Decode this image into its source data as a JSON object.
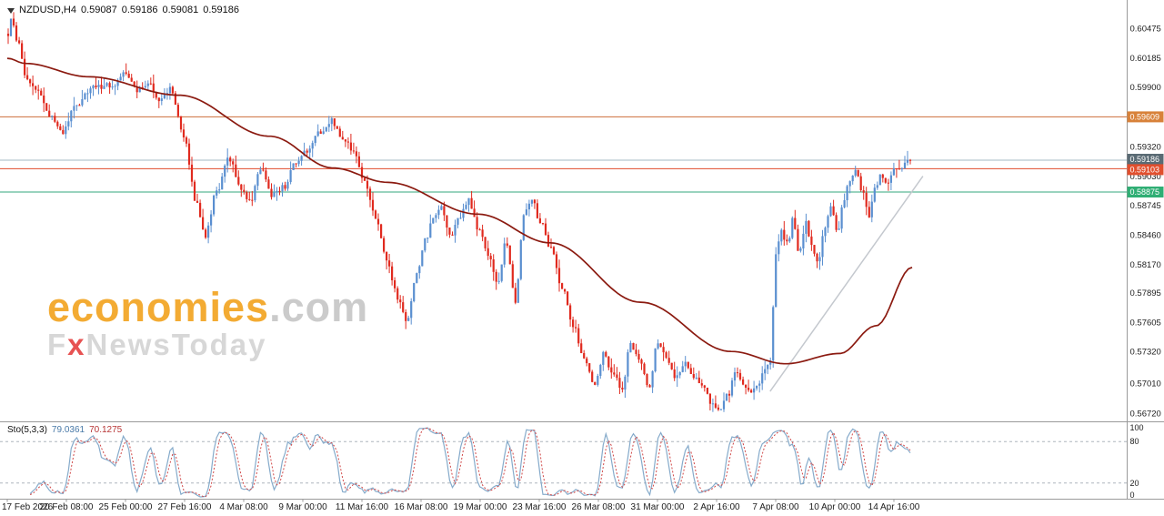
{
  "header": {
    "symbol_timeframe": "NZDUSD,H4",
    "open": "0.59087",
    "high": "0.59186",
    "low": "0.59081",
    "close": "0.59186"
  },
  "watermark": {
    "brand": "economies",
    "brand_suffix": ".com",
    "sub_pre": "F",
    "sub_x": "x",
    "sub_post": "NewsToday"
  },
  "indicator": {
    "name": "Sto(5,3,3)",
    "value_main": "79.0361",
    "value_signal": "70.1275"
  },
  "chart_data": {
    "type": "candlestick",
    "symbol": "NZDUSD",
    "timeframe": "H4",
    "last_close": 0.59186,
    "ohlc_display": {
      "open": 0.59087,
      "high": 0.59186,
      "low": 0.59081,
      "close": 0.59186
    },
    "y_axis": {
      "visible_top": 0.6066,
      "visible_bottom": 0.56638,
      "ticks": [
        0.60475,
        0.60185,
        0.599,
        0.5932,
        0.5903,
        0.58745,
        0.5846,
        0.5817,
        0.57895,
        0.57605,
        0.5732,
        0.5701,
        0.5672
      ]
    },
    "x_axis": {
      "labels": [
        "17 Feb 2026",
        "20 Feb 08:00",
        "25 Feb 00:00",
        "27 Feb 16:00",
        "4 Mar 08:00",
        "9 Mar 00:00",
        "11 Mar 16:00",
        "16 Mar 08:00",
        "19 Mar 00:00",
        "23 Mar 16:00",
        "26 Mar 08:00",
        "31 Mar 00:00",
        "2 Apr 16:00",
        "7 Apr 08:00",
        "10 Apr 00:00",
        "14 Apr 16:00"
      ]
    },
    "levels": [
      {
        "price": 0.59609,
        "label": "0.59609",
        "line_color": "#cd6e3a",
        "badge_color": "#d8823a",
        "kind": "resistance"
      },
      {
        "price": 0.59186,
        "label": "0.59186",
        "line_color": "#a5b9c3",
        "badge_color": "#5a6b74",
        "kind": "bid"
      },
      {
        "price": 0.59103,
        "label": "0.59103",
        "line_color": "#e0492a",
        "badge_color": "#e14f2e",
        "kind": "level"
      },
      {
        "price": 0.58875,
        "label": "0.58875",
        "line_color": "#35a77e",
        "badge_color": "#2fae74",
        "kind": "support"
      }
    ],
    "price_path": [
      [
        0.0,
        0.6042
      ],
      [
        0.004,
        0.6056
      ],
      [
        0.012,
        0.603
      ],
      [
        0.02,
        0.5995
      ],
      [
        0.032,
        0.5988
      ],
      [
        0.046,
        0.5962
      ],
      [
        0.06,
        0.5945
      ],
      [
        0.075,
        0.5972
      ],
      [
        0.095,
        0.599
      ],
      [
        0.115,
        0.5992
      ],
      [
        0.13,
        0.6003
      ],
      [
        0.143,
        0.5986
      ],
      [
        0.155,
        0.5995
      ],
      [
        0.168,
        0.5978
      ],
      [
        0.18,
        0.5988
      ],
      [
        0.195,
        0.594
      ],
      [
        0.208,
        0.588
      ],
      [
        0.218,
        0.5845
      ],
      [
        0.232,
        0.589
      ],
      [
        0.245,
        0.592
      ],
      [
        0.258,
        0.5892
      ],
      [
        0.268,
        0.5878
      ],
      [
        0.28,
        0.591
      ],
      [
        0.292,
        0.5885
      ],
      [
        0.305,
        0.5892
      ],
      [
        0.318,
        0.5915
      ],
      [
        0.332,
        0.5928
      ],
      [
        0.345,
        0.5945
      ],
      [
        0.358,
        0.5957
      ],
      [
        0.37,
        0.594
      ],
      [
        0.383,
        0.5928
      ],
      [
        0.395,
        0.5898
      ],
      [
        0.408,
        0.586
      ],
      [
        0.42,
        0.5818
      ],
      [
        0.432,
        0.5785
      ],
      [
        0.442,
        0.576
      ],
      [
        0.452,
        0.5805
      ],
      [
        0.462,
        0.584
      ],
      [
        0.472,
        0.5862
      ],
      [
        0.48,
        0.5872
      ],
      [
        0.49,
        0.5845
      ],
      [
        0.5,
        0.5862
      ],
      [
        0.51,
        0.588
      ],
      [
        0.522,
        0.585
      ],
      [
        0.532,
        0.5825
      ],
      [
        0.543,
        0.58
      ],
      [
        0.552,
        0.584
      ],
      [
        0.562,
        0.5782
      ],
      [
        0.572,
        0.5868
      ],
      [
        0.58,
        0.5882
      ],
      [
        0.59,
        0.5858
      ],
      [
        0.602,
        0.5832
      ],
      [
        0.614,
        0.5795
      ],
      [
        0.626,
        0.5758
      ],
      [
        0.638,
        0.5728
      ],
      [
        0.65,
        0.5698
      ],
      [
        0.66,
        0.573
      ],
      [
        0.67,
        0.5712
      ],
      [
        0.68,
        0.5696
      ],
      [
        0.69,
        0.5738
      ],
      [
        0.7,
        0.5722
      ],
      [
        0.71,
        0.5698
      ],
      [
        0.72,
        0.5742
      ],
      [
        0.73,
        0.5726
      ],
      [
        0.74,
        0.5708
      ],
      [
        0.75,
        0.5722
      ],
      [
        0.76,
        0.5708
      ],
      [
        0.77,
        0.5696
      ],
      [
        0.78,
        0.5682
      ],
      [
        0.79,
        0.5676
      ],
      [
        0.798,
        0.569
      ],
      [
        0.806,
        0.5712
      ],
      [
        0.814,
        0.57
      ],
      [
        0.822,
        0.5692
      ],
      [
        0.83,
        0.57
      ],
      [
        0.838,
        0.5712
      ],
      [
        0.845,
        0.5722
      ],
      [
        0.851,
        0.5825
      ],
      [
        0.857,
        0.5848
      ],
      [
        0.864,
        0.5838
      ],
      [
        0.87,
        0.5862
      ],
      [
        0.877,
        0.5828
      ],
      [
        0.884,
        0.5858
      ],
      [
        0.891,
        0.5835
      ],
      [
        0.898,
        0.5818
      ],
      [
        0.905,
        0.585
      ],
      [
        0.912,
        0.5872
      ],
      [
        0.919,
        0.5848
      ],
      [
        0.926,
        0.5878
      ],
      [
        0.933,
        0.5898
      ],
      [
        0.94,
        0.5908
      ],
      [
        0.947,
        0.5888
      ],
      [
        0.954,
        0.5865
      ],
      [
        0.961,
        0.589
      ],
      [
        0.968,
        0.5904
      ],
      [
        0.975,
        0.5896
      ],
      [
        0.982,
        0.5908
      ],
      [
        0.99,
        0.5912
      ],
      [
        1.0,
        0.59186
      ]
    ],
    "ma_path": [
      [
        0.0,
        0.6018
      ],
      [
        0.02,
        0.6013
      ],
      [
        0.09,
        0.6
      ],
      [
        0.19,
        0.5982
      ],
      [
        0.29,
        0.5942
      ],
      [
        0.36,
        0.5911
      ],
      [
        0.42,
        0.5897
      ],
      [
        0.52,
        0.5866
      ],
      [
        0.6,
        0.5838
      ],
      [
        0.7,
        0.578
      ],
      [
        0.8,
        0.5732
      ],
      [
        0.86,
        0.572
      ],
      [
        0.92,
        0.573
      ],
      [
        0.96,
        0.5757
      ],
      [
        1.0,
        0.5814
      ]
    ],
    "trendline": {
      "x1": 0.843,
      "p1": 0.5693,
      "x2": 1.012,
      "p2": 0.5903
    },
    "stochastic": {
      "label": "Sto(5,3,3)",
      "k_period": 5,
      "slowing": 3,
      "d_period": 3,
      "last_main": 79.0361,
      "last_signal": 70.1275,
      "scale_labels": [
        "100",
        "80",
        "20",
        "0"
      ],
      "scale_values": [
        100,
        80,
        20,
        0
      ],
      "dashed_levels": [
        80,
        20
      ]
    },
    "colors": {
      "bull": "#5a8fd0",
      "bear": "#e02a1f",
      "ma": "#8b1a10",
      "trend": "#c4c8ce",
      "sto_main": "#86abcb",
      "sto_signal": "#d04848",
      "axis_text": "#1c1c1c",
      "separator": "#9a9a9a"
    }
  }
}
